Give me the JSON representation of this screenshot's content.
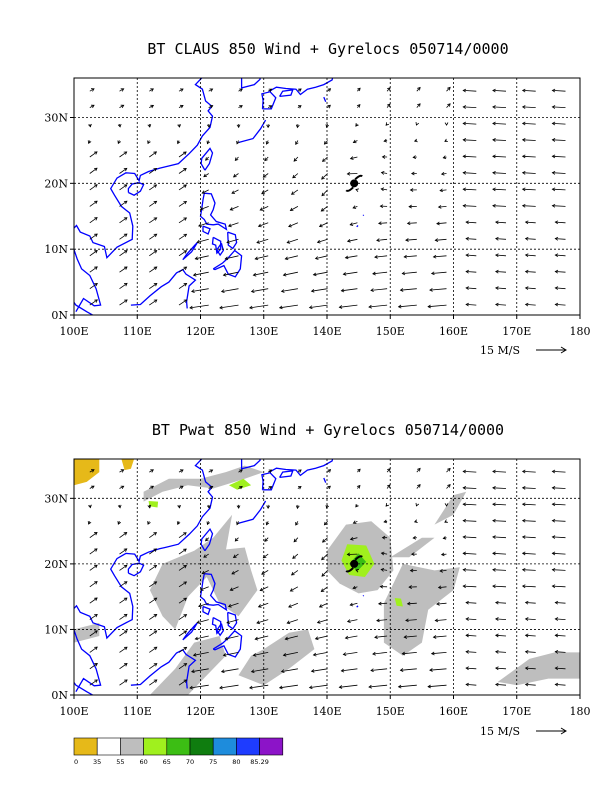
{
  "panels": [
    {
      "title": "BT CLAUS 850 Wind + Gyrelocs 050714/0000",
      "vector_label": "15 M/S"
    },
    {
      "title": "BT Pwat 850 Wind + Gyrelocs 050714/0000",
      "vector_label": "15 M/S"
    }
  ],
  "chart_data": [
    {
      "type": "vector-map",
      "title": "BT CLAUS 850 Wind + Gyrelocs 050714/0000",
      "x_ticks": [
        "100E",
        "110E",
        "120E",
        "130E",
        "140E",
        "150E",
        "160E",
        "170E",
        "180"
      ],
      "y_ticks": [
        "0N",
        "10N",
        "20N",
        "30N"
      ],
      "xlim": [
        100,
        180
      ],
      "ylim": [
        0,
        36
      ],
      "grid": true,
      "reference_vector": "15 M/S",
      "cyclone_symbol": {
        "lon": 144.3,
        "lat": 20.0
      },
      "coastline_color": "#0000ff"
    },
    {
      "type": "vector-map",
      "title": "BT Pwat 850 Wind + Gyrelocs 050714/0000",
      "x_ticks": [
        "100E",
        "110E",
        "120E",
        "130E",
        "140E",
        "150E",
        "160E",
        "170E",
        "180"
      ],
      "y_ticks": [
        "0N",
        "10N",
        "20N",
        "30N"
      ],
      "xlim": [
        100,
        180
      ],
      "ylim": [
        0,
        36
      ],
      "grid": true,
      "reference_vector": "15 M/S",
      "cyclone_symbol": {
        "lon": 144.3,
        "lat": 20.0
      },
      "colorbar": {
        "labels": [
          "0",
          "35",
          "55",
          "60",
          "65",
          "70",
          "75",
          "80",
          "85.29"
        ],
        "colors": [
          "#e6b919",
          "#ffffff",
          "#bebebe",
          "#a0f01e",
          "#3cbe14",
          "#0f7d0f",
          "#1e8cdc",
          "#1e3cff",
          "#8c14c8"
        ]
      }
    }
  ]
}
